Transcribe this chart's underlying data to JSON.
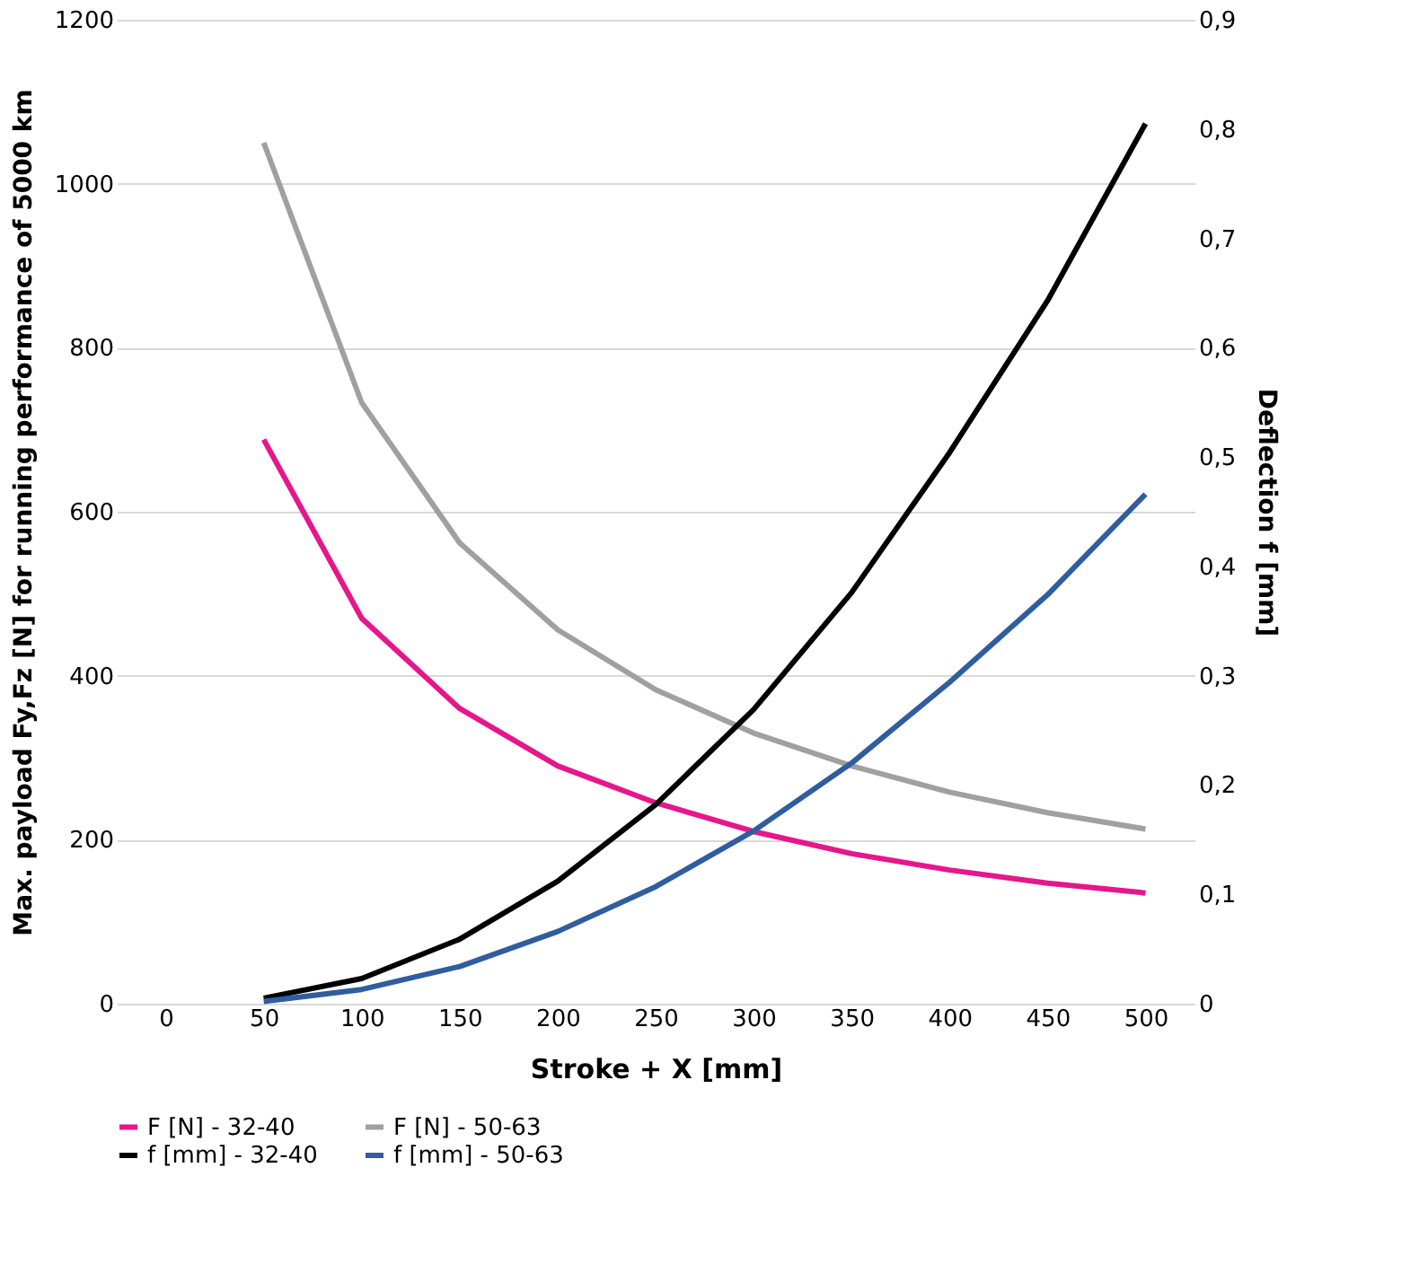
{
  "chart_data": {
    "type": "line",
    "xlabel": "Stroke + X [mm]",
    "ylabel": "Max. payload Fy,Fz [N] for running performance of 5000 km",
    "y2label": "Deflection f [mm]",
    "categories": [
      "0",
      "50",
      "100",
      "150",
      "200",
      "250",
      "300",
      "350",
      "400",
      "450",
      "500"
    ],
    "ylim": [
      0,
      1200
    ],
    "yticks": [
      0,
      200,
      400,
      600,
      800,
      1000,
      1200
    ],
    "y2lim": [
      0,
      0.9
    ],
    "y2ticks": [
      {
        "value": 0,
        "label": "0"
      },
      {
        "value": 0.1,
        "label": "0,1"
      },
      {
        "value": 0.2,
        "label": "0,2"
      },
      {
        "value": 0.3,
        "label": "0,3"
      },
      {
        "value": 0.4,
        "label": "0,4"
      },
      {
        "value": 0.5,
        "label": "0,5"
      },
      {
        "value": 0.6,
        "label": "0,6"
      },
      {
        "value": 0.7,
        "label": "0,7"
      },
      {
        "value": 0.8,
        "label": "0,8"
      },
      {
        "value": 0.9,
        "label": "0,9"
      }
    ],
    "grid": "y",
    "legend": "bottom",
    "series": [
      {
        "name": "F [N] - 32-40",
        "color": "#e6168c",
        "values": [
          null,
          688,
          470,
          360,
          290,
          245,
          210,
          183,
          163,
          147,
          135
        ]
      },
      {
        "name": "F [N] - 50-63",
        "color": "#a0a0a0",
        "values": [
          null,
          1050,
          733,
          562,
          456,
          383,
          330,
          290,
          258,
          233,
          213
        ]
      },
      {
        "name": "f [mm] - 32-40",
        "color": "#000000",
        "axis": "y2",
        "values": [
          null,
          0.005,
          0.023,
          0.059,
          0.112,
          0.182,
          0.269,
          0.376,
          0.504,
          0.643,
          0.805
        ]
      },
      {
        "name": "f [mm] - 50-63",
        "color": "#2f5d9f",
        "axis": "y2",
        "values": [
          null,
          0.002,
          0.013,
          0.034,
          0.066,
          0.107,
          0.158,
          0.22,
          0.294,
          0.374,
          0.466
        ]
      }
    ]
  }
}
